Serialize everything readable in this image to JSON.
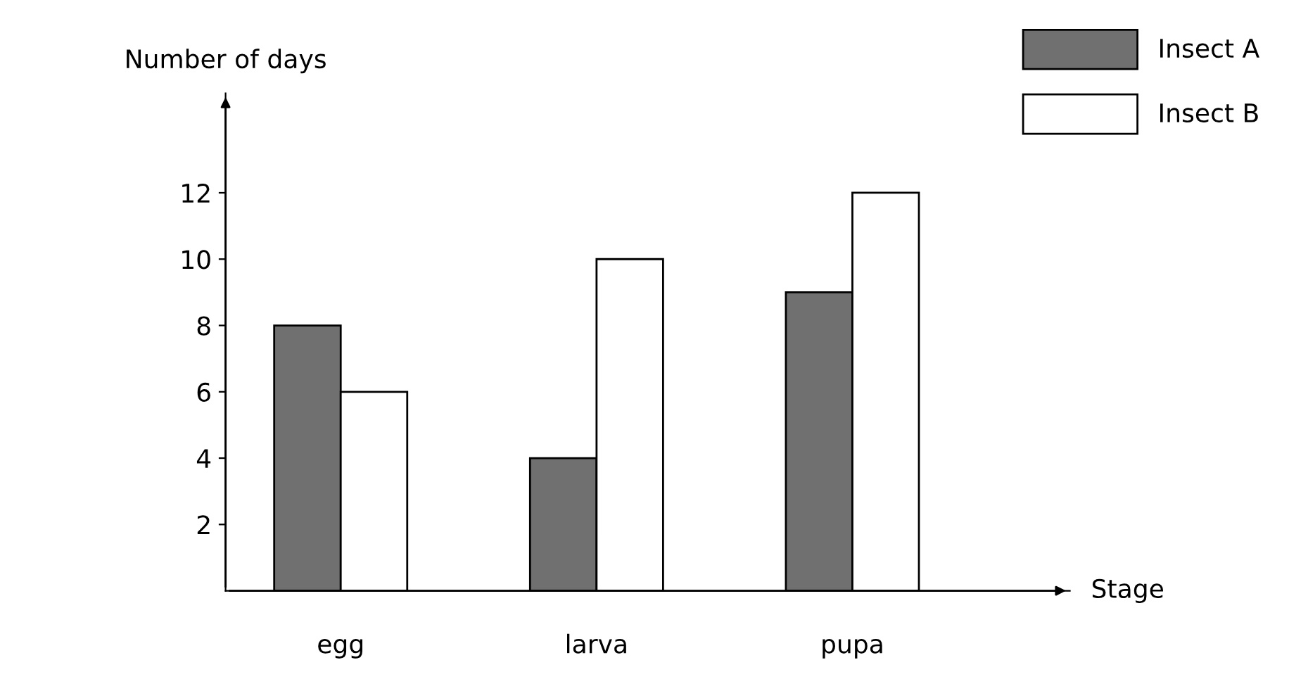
{
  "chart_data": {
    "type": "bar",
    "xlabel": "Stage",
    "ylabel": "Number of days",
    "categories": [
      "egg",
      "larva",
      "pupa"
    ],
    "series": [
      {
        "name": "Insect A",
        "color": "#707070",
        "values": [
          8,
          4,
          9
        ]
      },
      {
        "name": "Insect B",
        "color": "#ffffff",
        "values": [
          6,
          10,
          12
        ]
      }
    ],
    "ylim": [
      0,
      15
    ],
    "yticks": [
      2,
      4,
      6,
      8,
      10,
      12
    ],
    "grid": false,
    "legend": "top right"
  }
}
